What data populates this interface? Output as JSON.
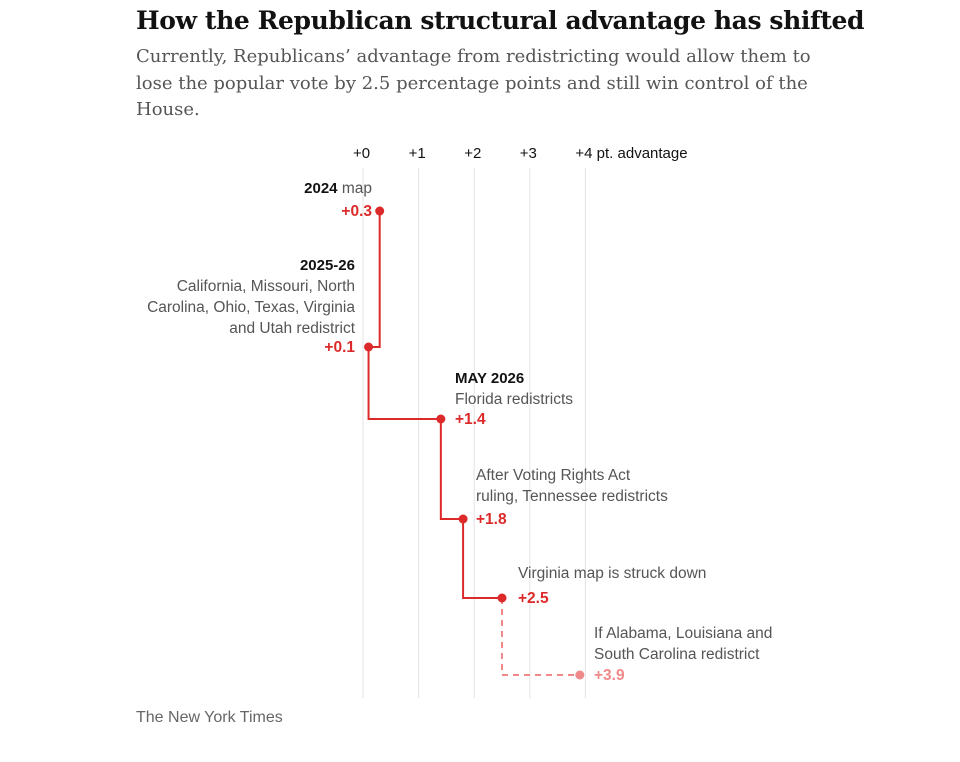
{
  "title": "How the Republican structural advantage has shifted",
  "subtitle": "Currently, Republicans’ advantage from redistricting would allow them to lose the popular vote by 2.5 percentage points and still win control of the House.",
  "credit": "The New York Times",
  "colors": {
    "solid": "#dc2a2a",
    "projected": "#f08a8a",
    "grid": "#e3e3e3"
  },
  "chart_data": {
    "type": "line",
    "title": "How the Republican structural advantage has shifted",
    "xlabel": "",
    "ylabel": "",
    "xlim": [
      0,
      4
    ],
    "grid": true,
    "x_ticks": [
      {
        "value": 0,
        "label": "+0"
      },
      {
        "value": 1,
        "label": "+1"
      },
      {
        "value": 2,
        "label": "+2"
      },
      {
        "value": 3,
        "label": "+3"
      },
      {
        "value": 4,
        "label": "+4 pt. advantage"
      }
    ],
    "points": [
      {
        "x": 0.3,
        "value_label": "+0.3",
        "bold": "2024",
        "desc_inline": " map",
        "desc_lines": [],
        "projected": false
      },
      {
        "x": 0.1,
        "value_label": "+0.1",
        "bold": "2025-26",
        "desc_inline": "",
        "desc_lines": [
          "California, Missouri, North",
          "Carolina, Ohio, Texas, Virginia",
          "and Utah redistrict"
        ],
        "projected": false
      },
      {
        "x": 1.4,
        "value_label": "+1.4",
        "bold": "MAY 2026",
        "desc_inline": "",
        "desc_lines": [
          "Florida redistricts"
        ],
        "projected": false
      },
      {
        "x": 1.8,
        "value_label": "+1.8",
        "bold": "",
        "desc_inline": "",
        "desc_lines": [
          "After Voting Rights Act",
          "ruling, Tennessee redistricts"
        ],
        "projected": false
      },
      {
        "x": 2.5,
        "value_label": "+2.5",
        "bold": "",
        "desc_inline": "",
        "desc_lines": [
          "Virginia map is struck down"
        ],
        "projected": false
      },
      {
        "x": 3.9,
        "value_label": "+3.9",
        "bold": "",
        "desc_inline": "",
        "desc_lines": [
          "If Alabama, Louisiana and",
          "South Carolina redistrict"
        ],
        "projected": true
      }
    ]
  }
}
